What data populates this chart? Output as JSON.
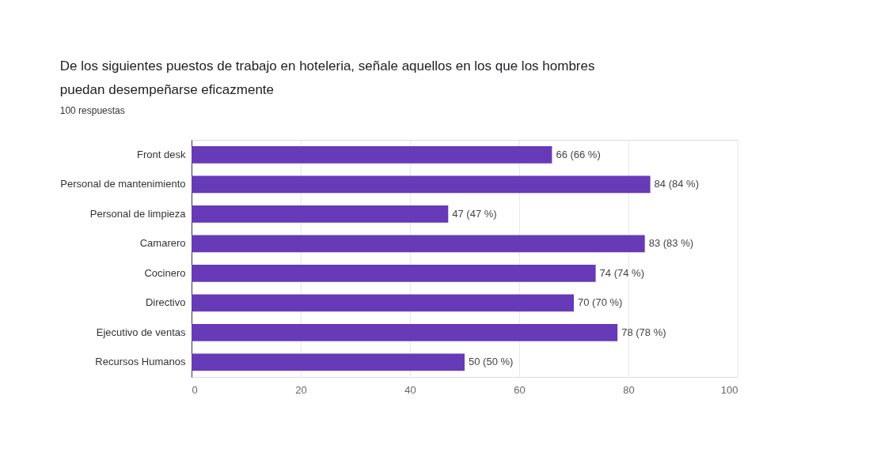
{
  "chart_data": {
    "type": "bar",
    "orientation": "horizontal",
    "title": "De los siguientes puestos de trabajo en hoteleria, señale aquellos en los que los hombres puedan desempeñarse eficazmente",
    "subtitle": "100 respuestas",
    "categories": [
      "Front desk",
      "Personal de mantenimiento",
      "Personal de limpieza",
      "Camarero",
      "Cocinero",
      "Directivo",
      "Ejecutivo de ventas",
      "Recursos Humanos"
    ],
    "values": [
      66,
      84,
      47,
      83,
      74,
      70,
      78,
      50
    ],
    "value_labels": [
      "66 (66 %)",
      "84 (84 %)",
      "47 (47 %)",
      "83 (83 %)",
      "74 (74 %)",
      "70 (70 %)",
      "78 (78 %)",
      "50 (50 %)"
    ],
    "color": "#673ab7",
    "xlim": [
      0,
      100
    ],
    "xticks": [
      0,
      20,
      40,
      60,
      80,
      100
    ],
    "grid": "x"
  }
}
